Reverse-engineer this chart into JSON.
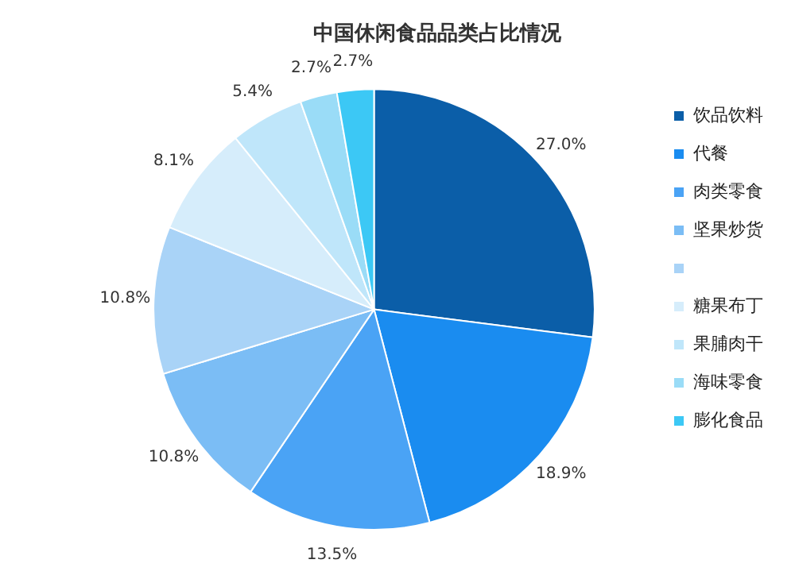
{
  "chart_data": {
    "type": "pie",
    "title": "中国休闲食品品类占比情况",
    "categories": [
      "饮品饮料",
      "代餐",
      "肉类零食",
      "坚果炒货",
      null,
      "糖果布丁",
      "果脯肉干",
      "海味零食",
      "膨化食品"
    ],
    "values": [
      27.0,
      18.9,
      13.5,
      10.8,
      10.8,
      8.1,
      5.4,
      2.7,
      2.7
    ],
    "value_labels": [
      "27.0%",
      "18.9%",
      "13.5%",
      "10.8%",
      "10.8%",
      "8.1%",
      "5.4%",
      "2.7%",
      "2.7%"
    ],
    "colors": [
      "#0b5ea8",
      "#1a8cf0",
      "#4aa3f5",
      "#7bbdf5",
      "#a9d3f7",
      "#d6edfb",
      "#bfe6fa",
      "#9adcf7",
      "#3cc8f5"
    ],
    "legend": "right"
  }
}
